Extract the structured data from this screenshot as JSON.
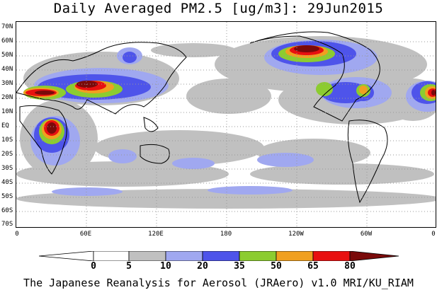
{
  "title": "Daily Averaged PM2.5 [ug/m3]: 29Jun2015",
  "footer": "The Japanese Reanalysis for Aerosol (JRAero) v1.0 MRI/KU_RIAM",
  "lat_labels": [
    "70N",
    "60N",
    "50N",
    "40N",
    "30N",
    "20N",
    "10N",
    "EQ",
    "10S",
    "20S",
    "30S",
    "40S",
    "50S",
    "60S",
    "70S"
  ],
  "lon_labels": [
    "0",
    "60E",
    "120E",
    "180",
    "120W",
    "60W",
    "0"
  ],
  "colorbar": {
    "labels": [
      "0",
      "5",
      "10",
      "20",
      "35",
      "50",
      "65",
      "80"
    ],
    "colors": [
      "#ffffff",
      "#c0c0c0",
      "#a0a8f0",
      "#4e54ea",
      "#8ccc30",
      "#f0a020",
      "#e81010",
      "#7a0a0a"
    ]
  }
}
